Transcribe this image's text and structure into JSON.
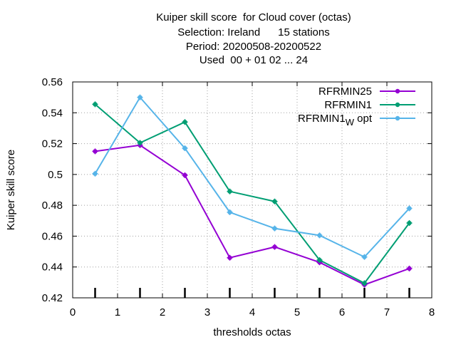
{
  "chart_data": {
    "type": "line",
    "title_lines": [
      "Kuiper skill score  for Cloud cover (octas)",
      "Selection: Ireland      15 stations",
      "Period: 20200508-20200522",
      "Used  00 + 01 02 ... 24"
    ],
    "xlabel": "thresholds octas",
    "ylabel": "Kuiper skill score",
    "xlim": [
      0,
      8
    ],
    "ylim": [
      0.42,
      0.56
    ],
    "xticks": [
      "0",
      "1",
      "2",
      "3",
      "4",
      "5",
      "6",
      "7",
      "8"
    ],
    "yticks": [
      "0.42",
      "0.44",
      "0.46",
      "0.48",
      "0.5",
      "0.52",
      "0.54",
      "0.56"
    ],
    "grid": true,
    "legend_position": "top-right",
    "x": [
      0.5,
      1.5,
      2.5,
      3.5,
      4.5,
      5.5,
      6.5,
      7.5
    ],
    "series": [
      {
        "name": "RFRMIN25",
        "legend_main": "RFRMIN25",
        "legend_sub": "",
        "legend_tail": "",
        "color": "#9400d3",
        "values": [
          0.515,
          0.519,
          0.4995,
          0.446,
          0.453,
          0.443,
          0.4285,
          0.439
        ]
      },
      {
        "name": "RFRMIN1",
        "legend_main": "RFRMIN1",
        "legend_sub": "",
        "legend_tail": "",
        "color": "#009e73",
        "values": [
          0.5455,
          0.5205,
          0.534,
          0.489,
          0.4825,
          0.4445,
          0.4295,
          0.4685
        ]
      },
      {
        "name": "RFRMIN1_W opt",
        "legend_main": "RFRMIN1",
        "legend_sub": "W",
        "legend_tail": "opt",
        "color": "#56b4e9",
        "values": [
          0.5005,
          0.55,
          0.517,
          0.4755,
          0.465,
          0.4605,
          0.4465,
          0.478
        ]
      }
    ]
  }
}
